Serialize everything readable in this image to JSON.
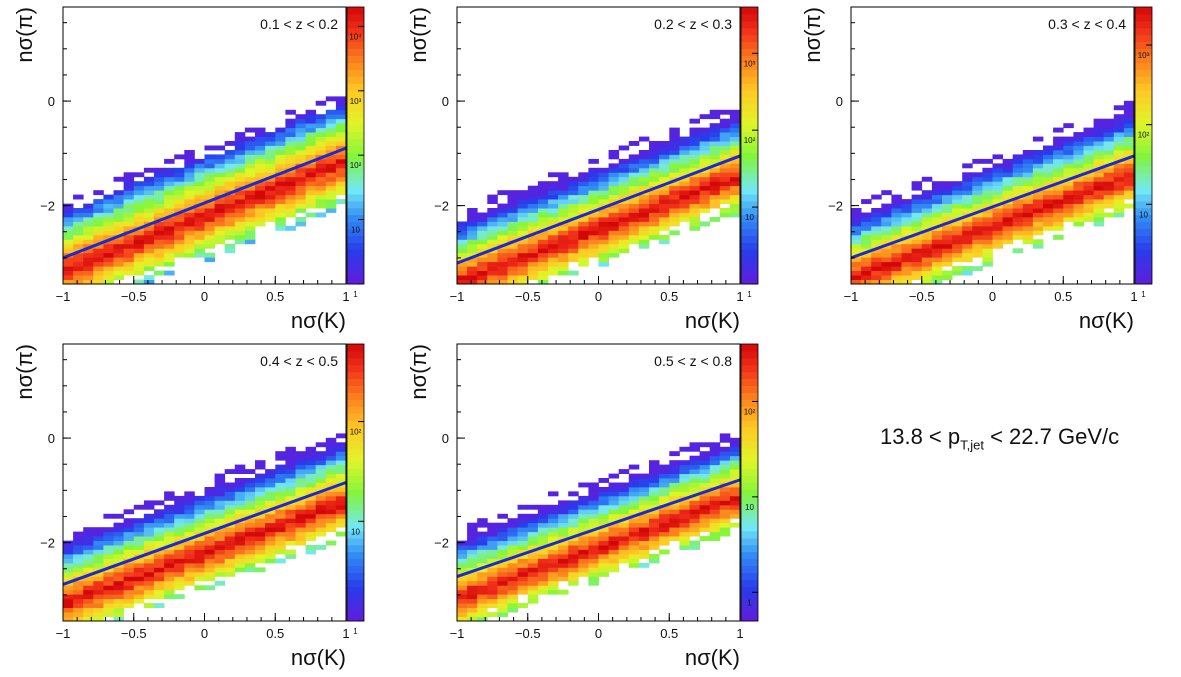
{
  "footer_label": {
    "prefix": "13.8 < p",
    "subscript": "T,jet",
    "suffix": " < 22.7 GeV/c"
  },
  "chart_data": [
    {
      "type": "heatmap",
      "title": "0.1 < z < 0.2",
      "xlabel": "nσ(K)",
      "ylabel": "nσ(π)",
      "xlim": [
        -1,
        1
      ],
      "ylim": [
        -3.5,
        1.8
      ],
      "xticks": [
        "−1",
        "−0.5",
        "0",
        "0.5",
        "1"
      ],
      "yticks": [
        {
          "value": 0,
          "label": "0"
        },
        {
          "value": -2,
          "label": "−2"
        }
      ],
      "color_scale": "log",
      "colorbar_range": [
        1,
        20000
      ],
      "colorbar_ticks": [
        {
          "value": 1,
          "label": "1"
        },
        {
          "value": 10,
          "label": "10"
        },
        {
          "value": 100,
          "label": "10²"
        },
        {
          "value": 1000,
          "label": "10³"
        },
        {
          "value": 10000,
          "label": "10⁴"
        }
      ],
      "band": {
        "intercept": -1.95,
        "slope": 1.05,
        "half_width": 0.9,
        "peak_offset": 0.1,
        "peak_count": 12000
      },
      "fit_line": {
        "x": [
          -1,
          1
        ],
        "y": [
          -3.0,
          -0.9
        ]
      }
    },
    {
      "type": "heatmap",
      "title": "0.2 < z < 0.3",
      "xlabel": "nσ(K)",
      "ylabel": "nσ(π)",
      "xlim": [
        -1,
        1
      ],
      "ylim": [
        -3.5,
        1.8
      ],
      "xticks": [
        "−1",
        "−0.5",
        "0",
        "0.5",
        "1"
      ],
      "yticks": [
        {
          "value": 0,
          "label": "0"
        },
        {
          "value": -2,
          "label": "−2"
        }
      ],
      "color_scale": "log",
      "colorbar_range": [
        1,
        4000
      ],
      "colorbar_ticks": [
        {
          "value": 1,
          "label": "1"
        },
        {
          "value": 10,
          "label": "10"
        },
        {
          "value": 100,
          "label": "10²"
        },
        {
          "value": 1000,
          "label": "10³"
        }
      ],
      "band": {
        "intercept": -2.1,
        "slope": 1.02,
        "half_width": 0.85,
        "peak_offset": 0.0,
        "peak_count": 3000
      },
      "fit_line": {
        "x": [
          -1,
          1
        ],
        "y": [
          -3.1,
          -1.05
        ]
      }
    },
    {
      "type": "heatmap",
      "title": "0.3 < z < 0.4",
      "xlabel": "nσ(K)",
      "ylabel": "nσ(π)",
      "xlim": [
        -1,
        1
      ],
      "ylim": [
        -3.5,
        1.8
      ],
      "xticks": [
        "−1",
        "−0.5",
        "0",
        "0.5",
        "1"
      ],
      "yticks": [
        {
          "value": 0,
          "label": "0"
        },
        {
          "value": -2,
          "label": "−2"
        }
      ],
      "color_scale": "log",
      "colorbar_range": [
        1,
        3000
      ],
      "colorbar_ticks": [
        {
          "value": 1,
          "label": "1"
        },
        {
          "value": 10,
          "label": "10"
        },
        {
          "value": 100,
          "label": "10²"
        },
        {
          "value": 1000,
          "label": "10³"
        }
      ],
      "band": {
        "intercept": -2.05,
        "slope": 1.0,
        "half_width": 0.85,
        "peak_offset": 0.0,
        "peak_count": 2200
      },
      "fit_line": {
        "x": [
          -1,
          1
        ],
        "y": [
          -3.0,
          -1.05
        ]
      }
    },
    {
      "type": "heatmap",
      "title": "0.4 < z < 0.5",
      "xlabel": "nσ(K)",
      "ylabel": "nσ(π)",
      "xlim": [
        -1,
        1
      ],
      "ylim": [
        -3.5,
        1.8
      ],
      "xticks": [
        "−1",
        "−0.5",
        "0",
        "0.5",
        "1"
      ],
      "yticks": [
        {
          "value": 0,
          "label": "0"
        },
        {
          "value": -2,
          "label": "−2"
        }
      ],
      "color_scale": "log",
      "colorbar_range": [
        1,
        600
      ],
      "colorbar_ticks": [
        {
          "value": 1,
          "label": "1"
        },
        {
          "value": 10,
          "label": "10"
        },
        {
          "value": 100,
          "label": "10²"
        }
      ],
      "band": {
        "intercept": -1.85,
        "slope": 0.98,
        "half_width": 0.85,
        "peak_offset": 0.0,
        "peak_count": 500
      },
      "fit_line": {
        "x": [
          -1,
          1
        ],
        "y": [
          -2.8,
          -0.85
        ]
      }
    },
    {
      "type": "heatmap",
      "title": "0.5 < z < 0.8",
      "xlabel": "nσ(K)",
      "ylabel": "nσ(π)",
      "xlim": [
        -1,
        1
      ],
      "ylim": [
        -3.5,
        1.8
      ],
      "xticks": [
        "−1",
        "−0.5",
        "0",
        "0.5",
        "1"
      ],
      "yticks": [
        {
          "value": 0,
          "label": "0"
        },
        {
          "value": -2,
          "label": "−2"
        }
      ],
      "color_scale": "log",
      "colorbar_range": [
        0.5,
        400
      ],
      "colorbar_ticks": [
        {
          "value": 1,
          "label": "1"
        },
        {
          "value": 10,
          "label": "10"
        },
        {
          "value": 100,
          "label": "10²"
        }
      ],
      "band": {
        "intercept": -1.75,
        "slope": 0.97,
        "half_width": 0.8,
        "peak_offset": 0.0,
        "peak_count": 300
      },
      "fit_line": {
        "x": [
          -1,
          1
        ],
        "y": [
          -2.65,
          -0.8
        ]
      }
    }
  ]
}
